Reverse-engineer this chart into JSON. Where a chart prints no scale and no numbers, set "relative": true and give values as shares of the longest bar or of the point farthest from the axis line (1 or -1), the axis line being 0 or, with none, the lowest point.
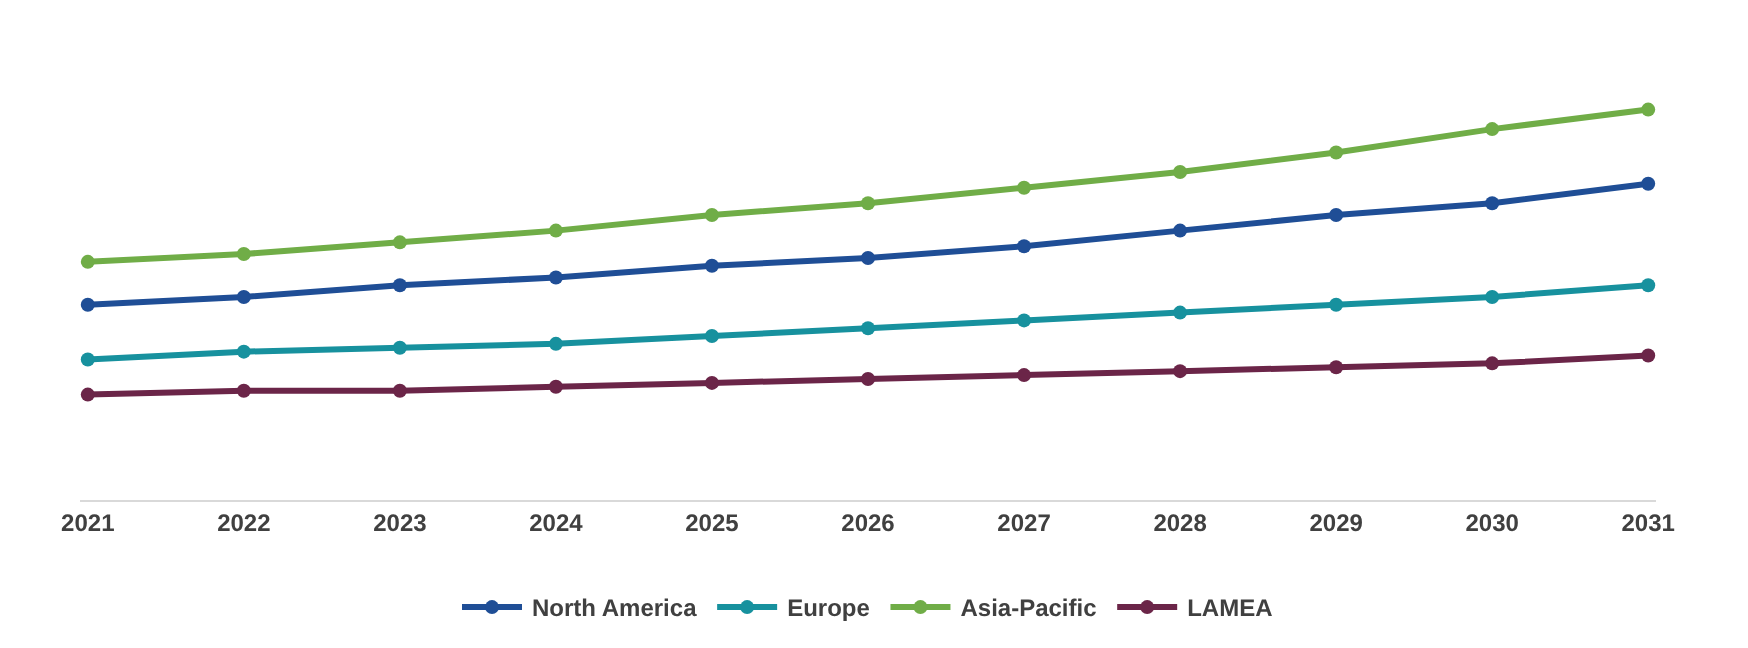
{
  "chart_data": {
    "type": "line",
    "relative": true,
    "categories": [
      "2021",
      "2022",
      "2023",
      "2024",
      "2025",
      "2026",
      "2027",
      "2028",
      "2029",
      "2030",
      "2031"
    ],
    "series": [
      {
        "name": "North America",
        "color": "#1f4e96",
        "values": [
          0.5,
          0.52,
          0.55,
          0.57,
          0.6,
          0.62,
          0.65,
          0.69,
          0.73,
          0.76,
          0.81
        ]
      },
      {
        "name": "Europe",
        "color": "#17919e",
        "values": [
          0.36,
          0.38,
          0.39,
          0.4,
          0.42,
          0.44,
          0.46,
          0.48,
          0.5,
          0.52,
          0.55
        ]
      },
      {
        "name": "Asia-Pacific",
        "color": "#70ad47",
        "values": [
          0.61,
          0.63,
          0.66,
          0.69,
          0.73,
          0.76,
          0.8,
          0.84,
          0.89,
          0.95,
          1
        ]
      },
      {
        "name": "LAMEA",
        "color": "#6b2548",
        "values": [
          0.27,
          0.28,
          0.28,
          0.29,
          0.3,
          0.31,
          0.32,
          0.33,
          0.34,
          0.35,
          0.37
        ]
      }
    ],
    "marker": "circle",
    "line_style": "solid",
    "legend": "bottom",
    "grid": false
  }
}
